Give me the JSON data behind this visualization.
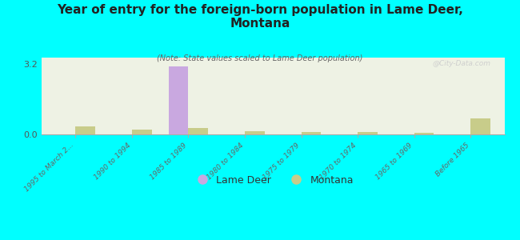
{
  "title": "Year of entry for the foreign-born population in Lame Deer,\nMontana",
  "subtitle": "(Note: State values scaled to Lame Deer population)",
  "categories": [
    "1995 to March 2...",
    "1990 to 1994",
    "1985 to 1989",
    "1980 to 1984",
    "1975 to 1979",
    "1970 to 1974",
    "1965 to 1969",
    "Before 1965"
  ],
  "lame_deer_values": [
    0,
    0,
    3.1,
    0,
    0,
    0,
    0,
    0
  ],
  "montana_values": [
    0.38,
    0.22,
    0.28,
    0.13,
    0.11,
    0.1,
    0.09,
    0.72
  ],
  "lame_deer_color": "#c9a8e0",
  "montana_color": "#c8cc8a",
  "background_color": "#00ffff",
  "plot_bg_color": "#eef2e4",
  "ylim": [
    0,
    3.5
  ],
  "yticks": [
    0,
    3.2
  ],
  "bar_width": 0.35,
  "watermark": "@City-Data.com"
}
